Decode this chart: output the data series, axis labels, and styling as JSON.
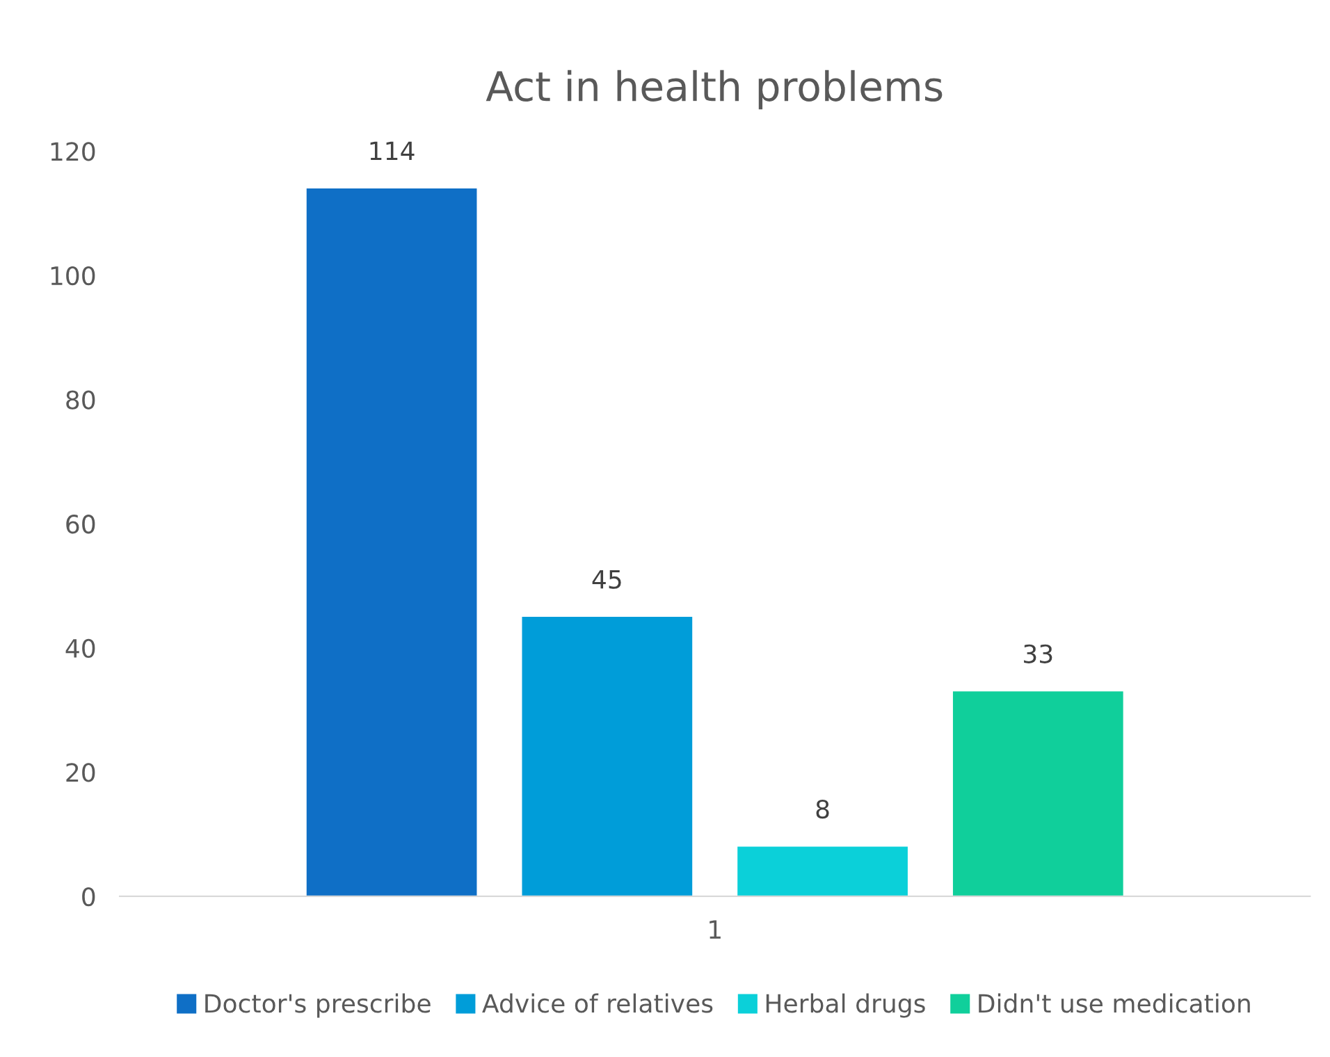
{
  "chart_data": {
    "type": "bar",
    "title": "Act in health problems",
    "categories": [
      "1"
    ],
    "series": [
      {
        "name": "Doctor's prescribe",
        "color": "#0f6fc6",
        "values": [
          114
        ]
      },
      {
        "name": "Advice of relatives",
        "color": "#009dd9",
        "values": [
          45
        ]
      },
      {
        "name": "Herbal drugs",
        "color": "#0bd0d9",
        "values": [
          8
        ]
      },
      {
        "name": "Didn't use medication",
        "color": "#10cf9b",
        "values": [
          33
        ]
      }
    ],
    "ylim": [
      0,
      120
    ],
    "yticks": [
      0,
      20,
      40,
      60,
      80,
      100,
      120
    ],
    "data_labels": true,
    "legend": "bottom"
  }
}
